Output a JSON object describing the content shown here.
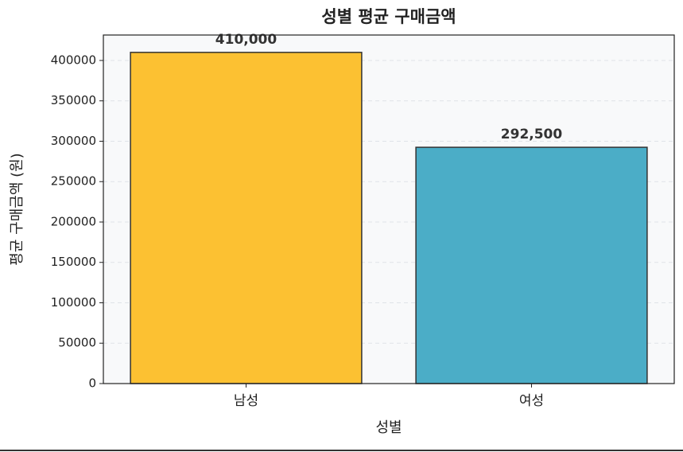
{
  "chart_data": {
    "type": "bar",
    "title": "성별 평균 구매금액",
    "x_label": "성별",
    "y_label": "평균 구매금액 (원)",
    "categories": [
      "남성",
      "여성"
    ],
    "values": [
      410000,
      292500
    ],
    "value_labels": [
      "410,000",
      "292,500"
    ],
    "colors": [
      "#fcc132",
      "#4badc7"
    ],
    "ylim": [
      0,
      431500
    ],
    "yticks": [
      0,
      50000,
      100000,
      150000,
      200000,
      250000,
      300000,
      350000,
      400000
    ],
    "grid": true
  }
}
